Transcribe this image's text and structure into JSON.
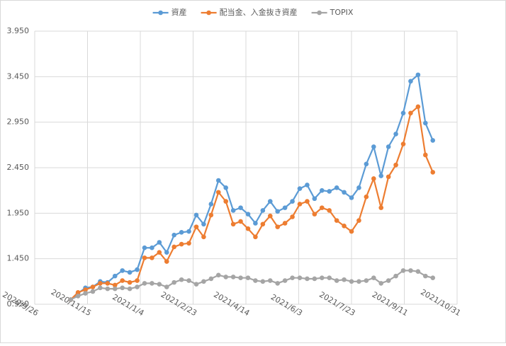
{
  "chart_data": {
    "type": "line",
    "x": [
      "2020/10/30",
      "2020/11/6",
      "2020/11/13",
      "2020/11/20",
      "2020/11/27",
      "2020/12/4",
      "2020/12/11",
      "2020/12/18",
      "2020/12/25",
      "2021/1/1",
      "2021/1/8",
      "2021/1/15",
      "2021/1/22",
      "2021/1/29",
      "2021/2/5",
      "2021/2/12",
      "2021/2/19",
      "2021/2/26",
      "2021/3/5",
      "2021/3/12",
      "2021/3/19",
      "2021/3/26",
      "2021/4/2",
      "2021/4/9",
      "2021/4/16",
      "2021/4/23",
      "2021/4/30",
      "2021/5/7",
      "2021/5/14",
      "2021/5/21",
      "2021/5/28",
      "2021/6/4",
      "2021/6/11",
      "2021/6/18",
      "2021/6/25",
      "2021/7/2",
      "2021/7/9",
      "2021/7/16",
      "2021/7/23",
      "2021/7/30",
      "2021/8/6",
      "2021/8/13",
      "2021/8/20",
      "2021/8/27",
      "2021/9/3",
      "2021/9/10",
      "2021/9/17",
      "2021/9/24",
      "2021/10/1",
      "2021/10/8"
    ],
    "series": [
      {
        "name": "資産",
        "color": "#5b9bd5",
        "values": [
          1.0,
          1.07,
          1.13,
          1.14,
          1.2,
          1.19,
          1.26,
          1.32,
          1.3,
          1.33,
          1.57,
          1.57,
          1.63,
          1.52,
          1.71,
          1.74,
          1.75,
          1.93,
          1.83,
          2.05,
          2.31,
          2.23,
          1.98,
          2.01,
          1.94,
          1.84,
          1.98,
          2.08,
          1.97,
          2.01,
          2.08,
          2.22,
          2.26,
          2.11,
          2.2,
          2.19,
          2.23,
          2.18,
          2.12,
          2.23,
          2.49,
          2.68,
          2.36,
          2.68,
          2.82,
          3.05,
          3.4,
          3.47,
          2.94,
          2.75
        ]
      },
      {
        "name": "配当金、入金抜き資産",
        "color": "#ed7d31",
        "values": [
          1.0,
          1.08,
          1.11,
          1.14,
          1.18,
          1.18,
          1.16,
          1.21,
          1.19,
          1.21,
          1.46,
          1.46,
          1.52,
          1.42,
          1.58,
          1.61,
          1.62,
          1.8,
          1.69,
          1.93,
          2.18,
          2.08,
          1.83,
          1.86,
          1.78,
          1.69,
          1.83,
          1.92,
          1.8,
          1.84,
          1.91,
          2.05,
          2.08,
          1.94,
          2.01,
          1.98,
          1.87,
          1.81,
          1.75,
          1.87,
          2.13,
          2.33,
          2.01,
          2.35,
          2.48,
          2.71,
          3.05,
          3.12,
          2.59,
          2.4
        ]
      },
      {
        "name": "TOPIX",
        "color": "#a5a5a5",
        "values": [
          1.0,
          1.04,
          1.07,
          1.09,
          1.13,
          1.12,
          1.12,
          1.13,
          1.12,
          1.14,
          1.18,
          1.18,
          1.17,
          1.14,
          1.19,
          1.22,
          1.21,
          1.17,
          1.2,
          1.23,
          1.27,
          1.25,
          1.25,
          1.24,
          1.24,
          1.21,
          1.2,
          1.21,
          1.18,
          1.21,
          1.24,
          1.24,
          1.23,
          1.23,
          1.24,
          1.24,
          1.21,
          1.22,
          1.2,
          1.2,
          1.21,
          1.24,
          1.18,
          1.21,
          1.26,
          1.32,
          1.32,
          1.31,
          1.26,
          1.24
        ]
      }
    ],
    "xlim": [
      "2020/9/26",
      "2021/10/31"
    ],
    "xticks": [
      "2020/9/26",
      "2020/11/15",
      "2021/1/4",
      "2021/2/23",
      "2021/4/14",
      "2021/6/3",
      "2021/7/23",
      "2021/9/11",
      "2021/10/31"
    ],
    "ylim": [
      0.95,
      3.95
    ],
    "yticks": [
      {
        "value": 0.95,
        "label": "0.950"
      },
      {
        "value": 1.45,
        "label": "1.450"
      },
      {
        "value": 1.95,
        "label": "1.950"
      },
      {
        "value": 2.45,
        "label": "2.450"
      },
      {
        "value": 2.95,
        "label": "2.950"
      },
      {
        "value": 3.45,
        "label": "3.450"
      },
      {
        "value": 3.95,
        "label": "3.950"
      }
    ],
    "grid": true,
    "legend": "top"
  }
}
